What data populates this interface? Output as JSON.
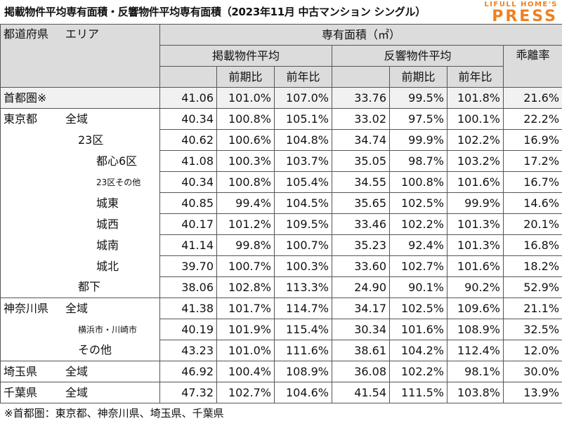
{
  "title": "掲載物件平均専有面積・反響物件平均専有面積（2023年11月 中古マンション シングル）",
  "logo": {
    "top": "LIFULL HOME'S",
    "bottom": "PRESS"
  },
  "header": {
    "prefecture": "都道府県",
    "area": "エリア",
    "group": "専有面積（㎡）",
    "listed": "掲載物件平均",
    "inquiry": "反響物件平均",
    "gap": "乖離率",
    "qoq": "前期比",
    "yoy": "前年比"
  },
  "rows": [
    {
      "pref": "首都圏※",
      "area": "",
      "l": "41.06",
      "lq": "101.0%",
      "ly": "107.0%",
      "i": "33.76",
      "iq": "99.5%",
      "iy": "101.8%",
      "g": "21.6%"
    },
    {
      "pref": "東京都",
      "area": "全域",
      "l": "40.34",
      "lq": "100.8%",
      "ly": "105.1%",
      "i": "33.02",
      "iq": "97.5%",
      "iy": "100.1%",
      "g": "22.2%"
    },
    {
      "pref": "",
      "area": "23区",
      "l": "40.62",
      "lq": "100.6%",
      "ly": "104.8%",
      "i": "34.74",
      "iq": "99.9%",
      "iy": "102.2%",
      "g": "16.9%"
    },
    {
      "pref": "",
      "area": "都心6区",
      "l": "41.08",
      "lq": "100.3%",
      "ly": "103.7%",
      "i": "35.05",
      "iq": "98.7%",
      "iy": "103.2%",
      "g": "17.2%"
    },
    {
      "pref": "",
      "area": "23区その他",
      "l": "40.34",
      "lq": "100.8%",
      "ly": "105.4%",
      "i": "34.55",
      "iq": "100.8%",
      "iy": "101.6%",
      "g": "16.7%"
    },
    {
      "pref": "",
      "area": "城東",
      "l": "40.85",
      "lq": "99.4%",
      "ly": "104.5%",
      "i": "35.65",
      "iq": "102.5%",
      "iy": "99.9%",
      "g": "14.6%"
    },
    {
      "pref": "",
      "area": "城西",
      "l": "40.17",
      "lq": "101.2%",
      "ly": "109.5%",
      "i": "33.46",
      "iq": "102.2%",
      "iy": "101.3%",
      "g": "20.1%"
    },
    {
      "pref": "",
      "area": "城南",
      "l": "41.14",
      "lq": "99.8%",
      "ly": "100.7%",
      "i": "35.23",
      "iq": "92.4%",
      "iy": "101.3%",
      "g": "16.8%"
    },
    {
      "pref": "",
      "area": "城北",
      "l": "39.70",
      "lq": "100.7%",
      "ly": "100.3%",
      "i": "33.60",
      "iq": "102.7%",
      "iy": "101.6%",
      "g": "18.2%"
    },
    {
      "pref": "",
      "area": "都下",
      "l": "38.06",
      "lq": "102.8%",
      "ly": "113.3%",
      "i": "24.90",
      "iq": "90.1%",
      "iy": "90.2%",
      "g": "52.9%"
    },
    {
      "pref": "神奈川県",
      "area": "全域",
      "l": "41.38",
      "lq": "101.7%",
      "ly": "114.7%",
      "i": "34.17",
      "iq": "102.5%",
      "iy": "109.6%",
      "g": "21.1%"
    },
    {
      "pref": "",
      "area": "横浜市・川崎市",
      "l": "40.19",
      "lq": "101.9%",
      "ly": "115.4%",
      "i": "30.34",
      "iq": "101.6%",
      "iy": "108.9%",
      "g": "32.5%"
    },
    {
      "pref": "",
      "area": "その他",
      "l": "43.23",
      "lq": "101.0%",
      "ly": "111.6%",
      "i": "38.61",
      "iq": "104.2%",
      "iy": "112.4%",
      "g": "12.0%"
    },
    {
      "pref": "埼玉県",
      "area": "全域",
      "l": "46.92",
      "lq": "100.4%",
      "ly": "108.9%",
      "i": "36.08",
      "iq": "102.2%",
      "iy": "98.1%",
      "g": "30.0%"
    },
    {
      "pref": "千葉県",
      "area": "全域",
      "l": "47.32",
      "lq": "102.7%",
      "ly": "104.6%",
      "i": "41.54",
      "iq": "111.5%",
      "iy": "103.8%",
      "g": "13.9%"
    }
  ],
  "footnote": "※首都圏：東京都、神奈川県、埼玉県、千葉県"
}
